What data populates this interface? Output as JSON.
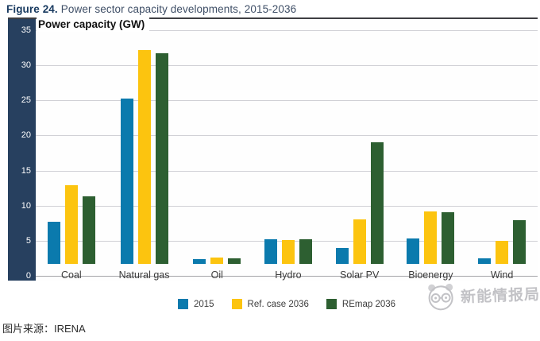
{
  "figure": {
    "label": "Figure 24.",
    "title_rest": "Power sector capacity developments, 2015-2036"
  },
  "chart_data": {
    "type": "bar",
    "title": "Power capacity (GW)",
    "xlabel": "",
    "ylabel": "Power capacity (GW)",
    "categories": [
      "Coal",
      "Natural gas",
      "Oil",
      "Hydro",
      "Solar PV",
      "Bioenergy",
      "Wind"
    ],
    "series": [
      {
        "name": "2015",
        "color": "#0b7aad",
        "values": [
          6.0,
          23.5,
          0.7,
          3.5,
          2.3,
          3.6,
          0.8
        ]
      },
      {
        "name": "Ref. case 2036",
        "color": "#fcc40f",
        "values": [
          11.2,
          30.5,
          0.9,
          3.4,
          6.3,
          7.5,
          3.3
        ]
      },
      {
        "name": "REmap 2036",
        "color": "#2d5f31",
        "values": [
          9.6,
          30.0,
          0.8,
          3.5,
          17.3,
          7.4,
          6.2
        ]
      }
    ],
    "ylim": [
      0,
      35
    ],
    "yticks": [
      0,
      5,
      10,
      15,
      20,
      25,
      30,
      35
    ],
    "grid": true,
    "legend_position": "bottom"
  },
  "colors": {
    "axis_band": "#27405f",
    "gridline": "#d1d1d6",
    "baseline": "#a3a4a8",
    "top_border": "#3f3f42",
    "figure_label": "#17395f",
    "figure_title": "#3e4e66",
    "watermark_gray": "#b4b4b8"
  },
  "watermark": {
    "text": "新能情报局",
    "icon": "panda-logo-icon"
  },
  "caption": "图片来源：IRENA"
}
